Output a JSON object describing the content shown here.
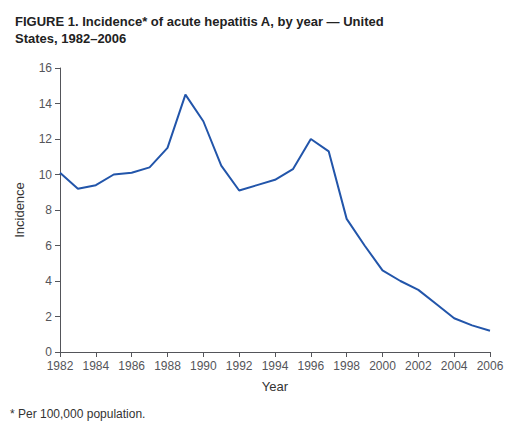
{
  "chart_data": {
    "type": "line",
    "title": "FIGURE 1. Incidence* of acute hepatitis A, by year — United\nStates, 1982–2006",
    "x": [
      1982,
      1983,
      1984,
      1985,
      1986,
      1987,
      1988,
      1989,
      1990,
      1991,
      1992,
      1993,
      1994,
      1995,
      1996,
      1997,
      1998,
      1999,
      2000,
      2001,
      2002,
      2003,
      2004,
      2005,
      2006
    ],
    "values": [
      10.1,
      9.2,
      9.4,
      10.0,
      10.1,
      10.4,
      11.5,
      14.5,
      13.0,
      10.5,
      9.1,
      9.4,
      9.7,
      10.3,
      12.0,
      11.3,
      7.5,
      6.0,
      4.6,
      4.0,
      3.5,
      2.7,
      1.9,
      1.5,
      1.2
    ],
    "color": "#2255aa",
    "xlabel": "Year",
    "ylabel": "Incidence",
    "xlim": [
      1982,
      2006
    ],
    "ylim": [
      0,
      16
    ],
    "xticks": [
      1982,
      1984,
      1986,
      1988,
      1990,
      1992,
      1994,
      1996,
      1998,
      2000,
      2002,
      2004,
      2006
    ],
    "yticks": [
      0,
      2,
      4,
      6,
      8,
      10,
      12,
      14,
      16
    ],
    "annotation": "* Per 100,000 population.",
    "grid": false
  }
}
